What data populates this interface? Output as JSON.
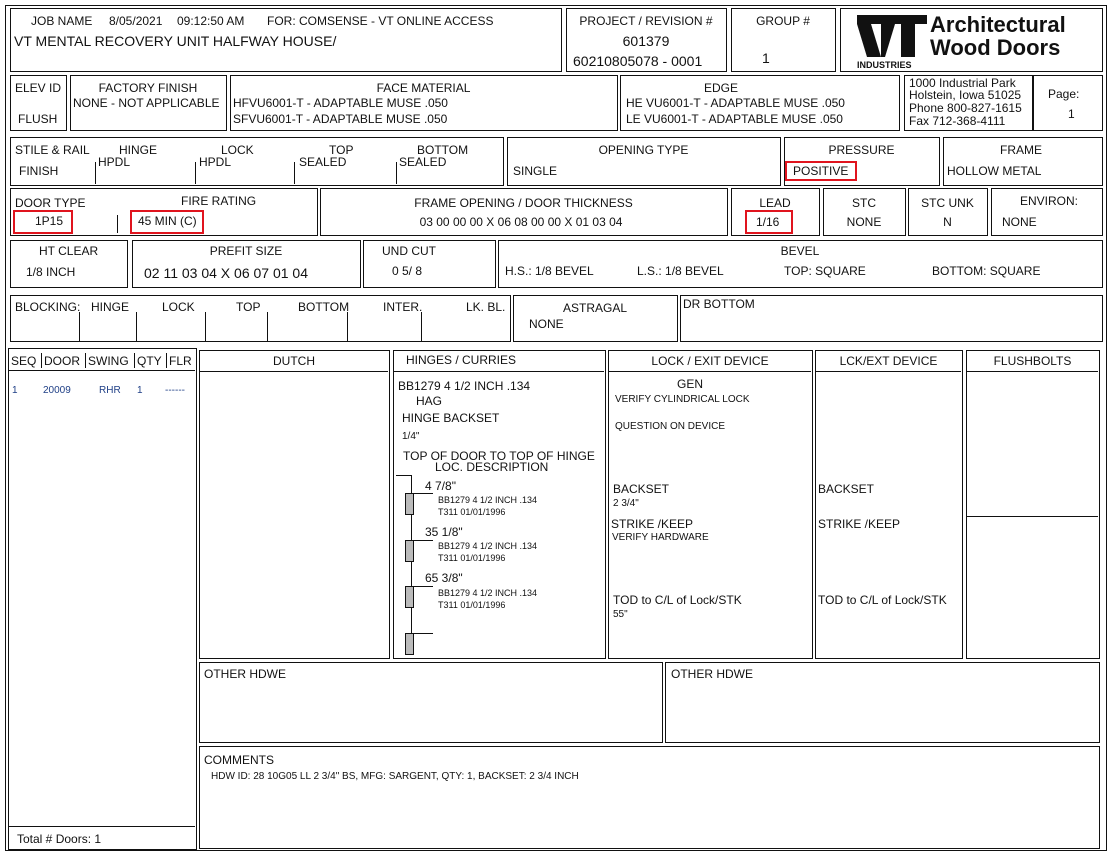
{
  "job": {
    "label": "JOB NAME",
    "date": "8/05/2021",
    "time": "09:12:50 AM",
    "for": "FOR: COMSENSE - VT ONLINE ACCESS",
    "name": "VT MENTAL RECOVERY UNIT HALFWAY HOUSE/"
  },
  "project": {
    "label": "PROJECT / REVISION #",
    "number": "601379",
    "revision": "60210805078  - 0001"
  },
  "group": {
    "label": "GROUP #",
    "value": "1"
  },
  "logo": {
    "mark": "VT",
    "line1": "Architectural",
    "line2": "Wood Doors",
    "sub": "INDUSTRIES"
  },
  "elev": {
    "label": "ELEV ID",
    "value": "FLUSH"
  },
  "factory_finish": {
    "label": "FACTORY FINISH",
    "value": "NONE - NOT APPLICABLE"
  },
  "face_material": {
    "label": "FACE MATERIAL",
    "line1": "HFVU6001-T - ADAPTABLE MUSE  .050",
    "line2": "SFVU6001-T - ADAPTABLE MUSE  .050"
  },
  "edge": {
    "label": "EDGE",
    "line1": "HE VU6001-T - ADAPTABLE MUSE  .050",
    "line2": "LE  VU6001-T - ADAPTABLE MUSE  .050"
  },
  "address": [
    "1000 Industrial Park",
    "Holstein, Iowa 51025",
    "Phone 800-827-1615",
    "Fax 712-368-4111"
  ],
  "page": {
    "label": "Page:",
    "value": "1"
  },
  "stile": {
    "label": "STILE & RAIL",
    "label2": "FINISH",
    "hinge_label": "HINGE",
    "hinge": "HPDL",
    "lock_label": "LOCK",
    "lock": "HPDL",
    "top_label": "TOP",
    "top": "SEALED",
    "bottom_label": "BOTTOM",
    "bottom": "SEALED"
  },
  "opening_type": {
    "label": "OPENING TYPE",
    "value": "SINGLE"
  },
  "pressure": {
    "label": "PRESSURE",
    "value": "POSITIVE"
  },
  "frame": {
    "label": "FRAME",
    "value": "HOLLOW METAL"
  },
  "door_type": {
    "label": "DOOR TYPE",
    "value": "1P15"
  },
  "fire_rating": {
    "label": "FIRE RATING",
    "value": "45 MIN (C)"
  },
  "frame_opening": {
    "label": "FRAME OPENING / DOOR THICKNESS",
    "value": "03 00 00 00  X  06 08 00 00  X  01 03 04"
  },
  "lead": {
    "label": "LEAD",
    "value": "1/16"
  },
  "stc": {
    "label": "STC",
    "value": "NONE"
  },
  "stc_unk": {
    "label": "STC UNK",
    "value": "N"
  },
  "environ": {
    "label": "ENVIRON:",
    "value": "NONE"
  },
  "ht_clear": {
    "label": "HT CLEAR",
    "value": "1/8 INCH"
  },
  "prefit": {
    "label": "PREFIT SIZE",
    "value": "02 11 03 04  X  06 07 01 04"
  },
  "und_cut": {
    "label": "UND CUT",
    "value": "0  5/ 8"
  },
  "bevel": {
    "label": "BEVEL",
    "hs": "H.S.: 1/8 BEVEL",
    "ls": "L.S.: 1/8 BEVEL",
    "top": "TOP: SQUARE",
    "bottom": "BOTTOM: SQUARE"
  },
  "blocking": {
    "label": "BLOCKING:",
    "cols": [
      "HINGE",
      "LOCK",
      "TOP",
      "BOTTOM",
      "INTER.",
      "LK. BL."
    ]
  },
  "astragal": {
    "label": "ASTRAGAL",
    "value": "NONE"
  },
  "dr_bottom": {
    "label": "DR BOTTOM"
  },
  "door_list": {
    "headers": [
      "SEQ",
      "DOOR",
      "SWING",
      "QTY",
      "FLR"
    ],
    "rows": [
      {
        "seq": "1",
        "door": "20009",
        "swing": "RHR",
        "qty": "1",
        "flr": "------"
      }
    ],
    "total": "Total # Doors:  1"
  },
  "dutch": {
    "label": "DUTCH"
  },
  "hinges": {
    "label": "HINGES /   CURRIES",
    "model": "BB1279   4 1/2 INCH   .134",
    "brand": "HAG",
    "backset_label": "HINGE BACKSET",
    "backset": "1/4\"",
    "loc_label": "TOP OF DOOR TO TOP OF HINGE",
    "loc_label2": "LOC.  DESCRIPTION",
    "locations": [
      {
        "dist": "4 7/8\"",
        "desc": "BB1279   4 1/2 INCH   .134",
        "code": "T311     01/01/1996"
      },
      {
        "dist": "35 1/8\"",
        "desc": "BB1279   4 1/2 INCH   .134",
        "code": "T311     01/01/1996"
      },
      {
        "dist": "65 3/8\"",
        "desc": "BB1279   4 1/2 INCH   .134",
        "code": "T311     01/01/1996"
      }
    ]
  },
  "lock": {
    "label": "LOCK / EXIT DEVICE",
    "brand": "GEN",
    "line1": "VERIFY CYLINDRICAL LOCK",
    "line2": "QUESTION ON DEVICE",
    "backset_label": "BACKSET",
    "backset": "2 3/4\"",
    "strike_label": "STRIKE /KEEP",
    "strike": "VERIFY HARDWARE",
    "tod_label": "TOD to C/L of Lock/STK",
    "tod": "55\""
  },
  "lck_ext": {
    "label": "LCK/EXT DEVICE",
    "backset_label": "BACKSET",
    "strike_label": "STRIKE /KEEP",
    "tod_label": "TOD to C/L of Lock/STK"
  },
  "flushbolts": {
    "label": "FLUSHBOLTS"
  },
  "other_hdwe": {
    "label1": "OTHER HDWE",
    "label2": "OTHER HDWE"
  },
  "comments": {
    "label": "COMMENTS",
    "text": "HDW ID: 28 10G05 LL 2 3/4\" BS, MFG: SARGENT, QTY: 1, BACKSET: 2 3/4 INCH"
  },
  "colors": {
    "highlight": "#e0141e",
    "row_text": "#1f3f86"
  }
}
